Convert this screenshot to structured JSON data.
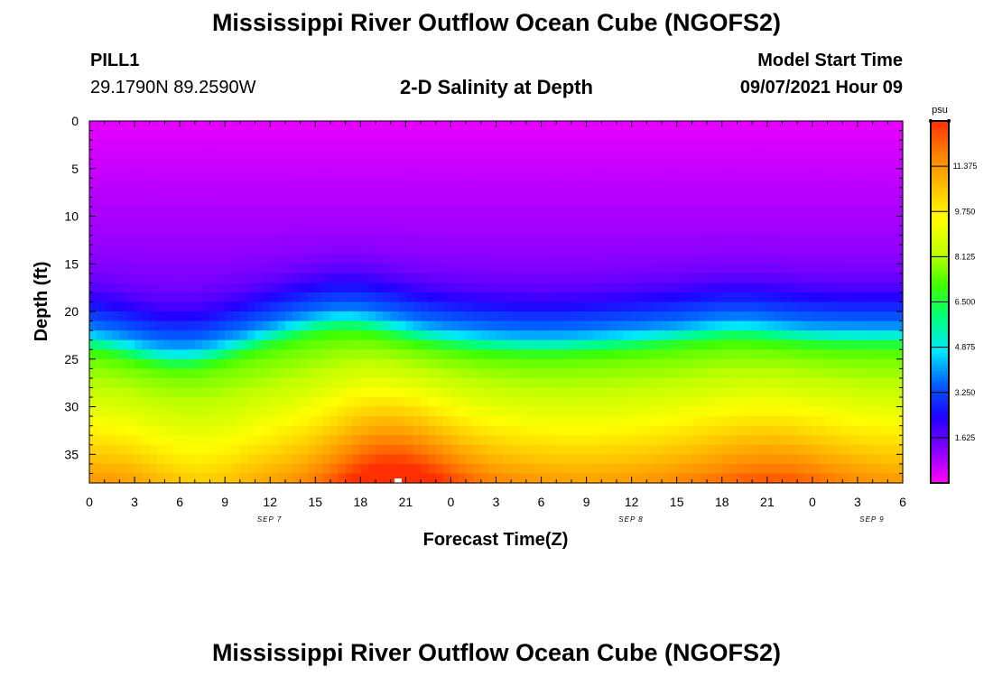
{
  "header": {
    "title": "Mississippi River Outflow Ocean Cube (NGOFS2)",
    "station": "PILL1",
    "coords": "29.1790N  89.2590W",
    "plot_title": "2-D Salinity at Depth",
    "start_label": "Model Start Time",
    "start_value": "09/07/2021 Hour 09"
  },
  "footer": {
    "title": "Mississippi River Outflow Ocean Cube (NGOFS2)"
  },
  "chart_data": {
    "type": "heatmap",
    "title": "2-D Salinity at Depth",
    "xlabel": "Forecast Time(Z)",
    "ylabel": "Depth (ft)",
    "ylim": [
      0,
      38
    ],
    "y_inverted": true,
    "x_hours_range": [
      0,
      54
    ],
    "x_tick_labels": [
      "0",
      "3",
      "6",
      "9",
      "12",
      "15",
      "18",
      "21",
      "0",
      "3",
      "6",
      "9",
      "12",
      "15",
      "18",
      "21",
      "0",
      "3",
      "6"
    ],
    "y_ticks": [
      0,
      5,
      10,
      15,
      20,
      25,
      30,
      35
    ],
    "date_labels": [
      {
        "label": "SEP 7",
        "hour": 11
      },
      {
        "label": "SEP 8",
        "hour": 35
      },
      {
        "label": "SEP 9",
        "hour": 51
      }
    ],
    "colorbar": {
      "unit": "psu",
      "range": [
        0,
        13
      ],
      "tick_labels": [
        "1.625",
        "3.250",
        "4.875",
        "6.500",
        "8.125",
        "9.750",
        "11.375"
      ],
      "colors": [
        "#ff00ff",
        "#8800ff",
        "#2000ff",
        "#0060ff",
        "#00e8ff",
        "#00ff80",
        "#40ff00",
        "#c0ff00",
        "#ffff00",
        "#ffc000",
        "#ff8000",
        "#ff3000"
      ]
    },
    "grid": false
  }
}
